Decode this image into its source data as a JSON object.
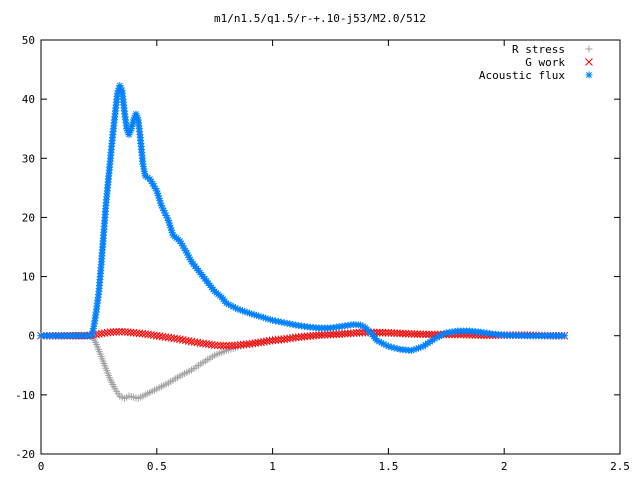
{
  "chart_data": {
    "type": "scatter",
    "title": "m1/n1.5/q1.5/r-+.10-j53/M2.0/512",
    "xlabel": "",
    "ylabel": "",
    "xlim": [
      0,
      2.5
    ],
    "ylim": [
      -20,
      50
    ],
    "x_ticks": [
      "0",
      "0.5",
      "1",
      "1.5",
      "2",
      "2.5"
    ],
    "y_ticks": [
      "-20",
      "-10",
      "0",
      "10",
      "20",
      "30",
      "40",
      "50"
    ],
    "grid": false,
    "legend_position": "top-right",
    "series": [
      {
        "name": "R stress",
        "color": "#a0a0a0",
        "marker": "plus",
        "points": [
          [
            0.0,
            0
          ],
          [
            0.2,
            0
          ],
          [
            0.22,
            0
          ],
          [
            0.24,
            -1.5
          ],
          [
            0.26,
            -3.5
          ],
          [
            0.28,
            -5.5
          ],
          [
            0.3,
            -7.5
          ],
          [
            0.32,
            -9.0
          ],
          [
            0.34,
            -10.2
          ],
          [
            0.36,
            -10.6
          ],
          [
            0.38,
            -10.2
          ],
          [
            0.4,
            -10.4
          ],
          [
            0.42,
            -10.6
          ],
          [
            0.45,
            -10.0
          ],
          [
            0.5,
            -9.0
          ],
          [
            0.55,
            -8.0
          ],
          [
            0.6,
            -6.8
          ],
          [
            0.65,
            -5.8
          ],
          [
            0.7,
            -4.5
          ],
          [
            0.75,
            -3.3
          ],
          [
            0.8,
            -2.5
          ],
          [
            0.85,
            -1.9
          ],
          [
            0.9,
            -1.4
          ],
          [
            0.95,
            -1.0
          ],
          [
            1.0,
            -0.6
          ],
          [
            1.1,
            -0.2
          ],
          [
            1.2,
            0.1
          ],
          [
            1.3,
            0.3
          ],
          [
            1.4,
            0.4
          ],
          [
            1.5,
            0.4
          ],
          [
            1.6,
            0.3
          ],
          [
            1.7,
            0.2
          ],
          [
            1.8,
            0.2
          ],
          [
            1.9,
            0.1
          ],
          [
            2.0,
            0.1
          ],
          [
            2.1,
            0.0
          ],
          [
            2.2,
            0.0
          ],
          [
            2.26,
            0.0
          ]
        ]
      },
      {
        "name": "G work",
        "color": "#ff0000",
        "marker": "cross",
        "points": [
          [
            0.0,
            0
          ],
          [
            0.2,
            0
          ],
          [
            0.25,
            0.3
          ],
          [
            0.3,
            0.6
          ],
          [
            0.35,
            0.7
          ],
          [
            0.4,
            0.5
          ],
          [
            0.45,
            0.3
          ],
          [
            0.5,
            0.0
          ],
          [
            0.55,
            -0.3
          ],
          [
            0.6,
            -0.6
          ],
          [
            0.65,
            -1.0
          ],
          [
            0.7,
            -1.3
          ],
          [
            0.75,
            -1.6
          ],
          [
            0.8,
            -1.7
          ],
          [
            0.85,
            -1.6
          ],
          [
            0.9,
            -1.4
          ],
          [
            0.95,
            -1.1
          ],
          [
            1.0,
            -0.8
          ],
          [
            1.05,
            -0.6
          ],
          [
            1.1,
            -0.3
          ],
          [
            1.15,
            -0.1
          ],
          [
            1.2,
            0.1
          ],
          [
            1.3,
            0.3
          ],
          [
            1.4,
            0.6
          ],
          [
            1.5,
            0.5
          ],
          [
            1.6,
            0.3
          ],
          [
            1.7,
            0.2
          ],
          [
            1.8,
            0.2
          ],
          [
            1.9,
            0.1
          ],
          [
            2.0,
            0.1
          ],
          [
            2.1,
            0.1
          ],
          [
            2.2,
            0.0
          ],
          [
            2.26,
            0.0
          ]
        ]
      },
      {
        "name": "Acoustic flux",
        "color": "#0080ff",
        "marker": "star",
        "points": [
          [
            0.0,
            0
          ],
          [
            0.22,
            0
          ],
          [
            0.23,
            2
          ],
          [
            0.24,
            4.5
          ],
          [
            0.25,
            7.5
          ],
          [
            0.26,
            12
          ],
          [
            0.27,
            17
          ],
          [
            0.28,
            22
          ],
          [
            0.29,
            26
          ],
          [
            0.3,
            30
          ],
          [
            0.31,
            34
          ],
          [
            0.32,
            37.5
          ],
          [
            0.33,
            41
          ],
          [
            0.34,
            42.3
          ],
          [
            0.35,
            41.5
          ],
          [
            0.36,
            38
          ],
          [
            0.37,
            35
          ],
          [
            0.38,
            34
          ],
          [
            0.39,
            35
          ],
          [
            0.4,
            36.5
          ],
          [
            0.41,
            37.5
          ],
          [
            0.42,
            36.5
          ],
          [
            0.43,
            33
          ],
          [
            0.44,
            29
          ],
          [
            0.45,
            27
          ],
          [
            0.47,
            26.5
          ],
          [
            0.5,
            24.5
          ],
          [
            0.52,
            22
          ],
          [
            0.55,
            19.5
          ],
          [
            0.57,
            17
          ],
          [
            0.6,
            16
          ],
          [
            0.63,
            14
          ],
          [
            0.65,
            12.5
          ],
          [
            0.68,
            11
          ],
          [
            0.7,
            10
          ],
          [
            0.73,
            8.5
          ],
          [
            0.75,
            7.5
          ],
          [
            0.78,
            6.5
          ],
          [
            0.8,
            5.5
          ],
          [
            0.85,
            4.5
          ],
          [
            0.9,
            3.8
          ],
          [
            0.95,
            3.2
          ],
          [
            1.0,
            2.6
          ],
          [
            1.05,
            2.2
          ],
          [
            1.1,
            1.8
          ],
          [
            1.15,
            1.5
          ],
          [
            1.2,
            1.3
          ],
          [
            1.25,
            1.3
          ],
          [
            1.3,
            1.6
          ],
          [
            1.35,
            1.9
          ],
          [
            1.38,
            1.8
          ],
          [
            1.4,
            1.4
          ],
          [
            1.43,
            0.2
          ],
          [
            1.45,
            -0.8
          ],
          [
            1.5,
            -1.8
          ],
          [
            1.55,
            -2.3
          ],
          [
            1.6,
            -2.5
          ],
          [
            1.65,
            -1.8
          ],
          [
            1.7,
            -0.5
          ],
          [
            1.75,
            0.5
          ],
          [
            1.8,
            0.8
          ],
          [
            1.85,
            0.8
          ],
          [
            1.9,
            0.6
          ],
          [
            1.95,
            0.3
          ],
          [
            2.0,
            0.1
          ],
          [
            2.1,
            0.0
          ],
          [
            2.2,
            0.0
          ],
          [
            2.26,
            0.0
          ]
        ]
      }
    ]
  }
}
